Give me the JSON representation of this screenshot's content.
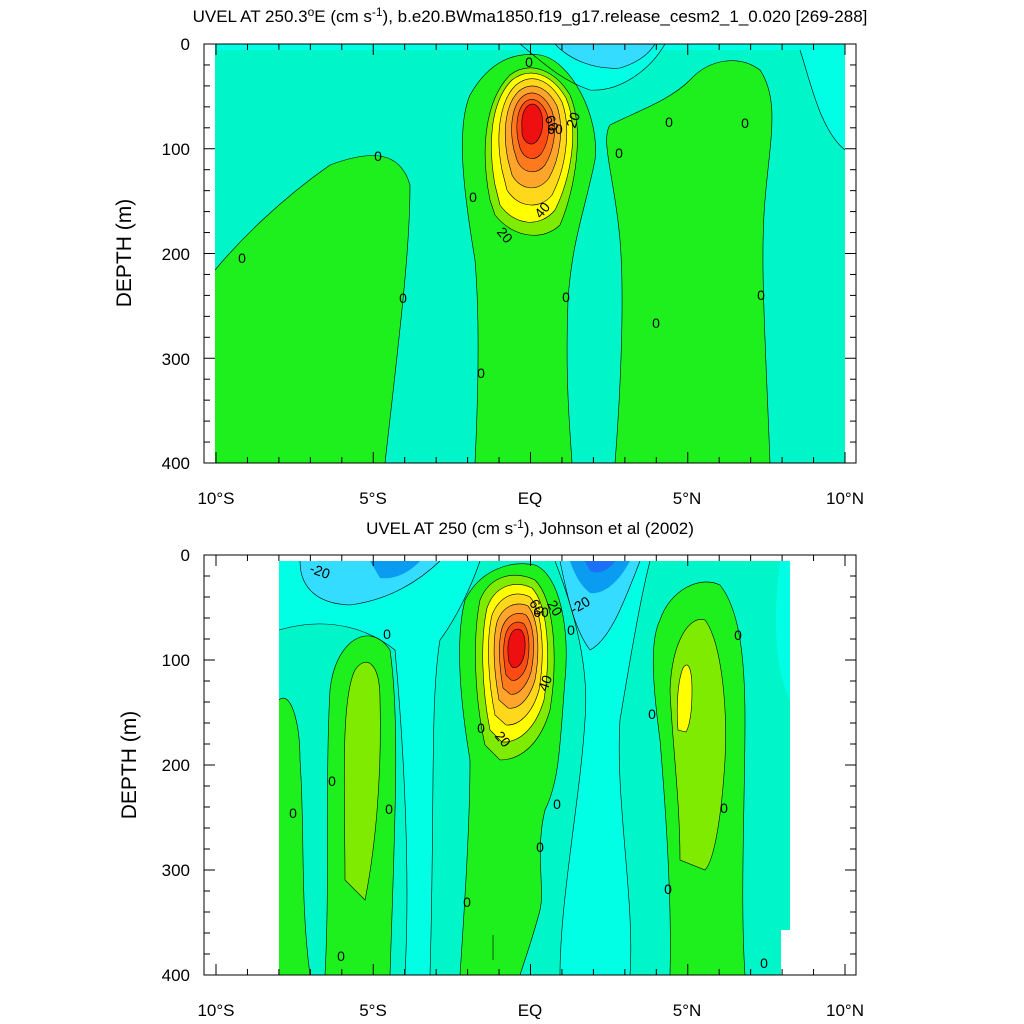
{
  "chart_data": [
    {
      "type": "contour",
      "title": "UVEL AT 250.3°E (cm s-1), b.e20.BWma1850.f19_g17.release_cesm2_1_0.020 [269-288]",
      "title_parts": {
        "a": "UVEL AT 250.3",
        "deg": "o",
        "b": "E (cm s",
        "sup": "-1",
        "c": "), b.e20.BWma1850.f19_g17.release_cesm2_1_0.020 [269-288]"
      },
      "ylabel": "DEPTH (m)",
      "xlim": [
        -10,
        10
      ],
      "ylim": [
        400,
        0
      ],
      "x_tick_labels": [
        "10°S",
        "5°S",
        "EQ",
        "5°N",
        "10°N"
      ],
      "y_tick_labels": [
        "0",
        "100",
        "200",
        "300",
        "400"
      ],
      "data_extent_x": [
        -10,
        10
      ],
      "core": {
        "lat": 0,
        "depth_m": 95,
        "max_cm_s": 80
      },
      "contour_labels": [
        "0",
        "0",
        "0",
        "0",
        "0",
        "0",
        "0",
        "0",
        "0",
        "0",
        "0",
        "20",
        "20",
        "40",
        "60",
        "60",
        "20"
      ]
    },
    {
      "type": "contour",
      "title": "UVEL AT 250 (cm s-1), Johnson et al (2002)",
      "title_parts": {
        "a": "UVEL AT 250 (cm s",
        "sup": "-1",
        "c": "), Johnson et al (2002)"
      },
      "ylabel": "DEPTH (m)",
      "xlim": [
        -10,
        10
      ],
      "ylim": [
        400,
        0
      ],
      "x_tick_labels": [
        "10°S",
        "5°S",
        "EQ",
        "5°N",
        "10°N"
      ],
      "y_tick_labels": [
        "0",
        "100",
        "200",
        "300",
        "400"
      ],
      "data_extent_x": [
        -8,
        8.3
      ],
      "core": {
        "lat": -0.3,
        "depth_m": 75,
        "max_cm_s": 80
      },
      "contour_labels": [
        "-20",
        "-20",
        "60",
        "60",
        "20",
        "0",
        "40",
        "20",
        "0",
        "0",
        "0",
        "0",
        "0",
        "0",
        "0",
        "0",
        "0",
        "0",
        "0",
        "0",
        "0",
        "0"
      ]
    }
  ],
  "colors": {
    "neg40": "#1c6ff8",
    "neg30": "#0a9cf0",
    "neg20": "#34ddff",
    "neg10": "#00ffe5",
    "zero": "#00f5c8",
    "pos10": "#1ef01e",
    "pos20": "#7eeb00",
    "pos30": "#ffff00",
    "pos40": "#ffd81c",
    "pos50": "#ffa52b",
    "pos60": "#ff7a1e",
    "pos70": "#ff4a14",
    "pos80": "#ee1010"
  }
}
